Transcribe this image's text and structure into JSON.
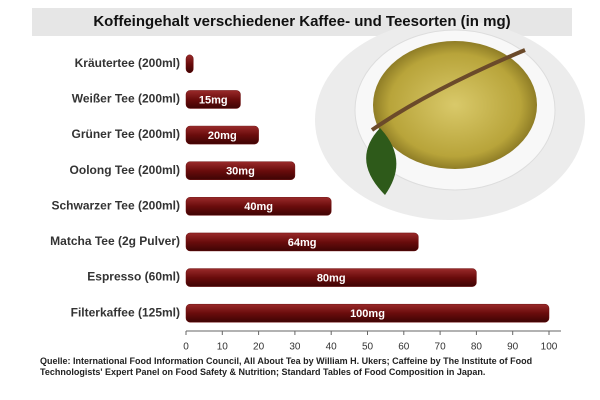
{
  "chart_data": {
    "type": "bar",
    "orientation": "horizontal",
    "title": "Koffeingehalt verschiedener Kaffee- und Teesorten (in mg)",
    "categories": [
      "Kräutertee (200ml)",
      "Weißer Tee (200ml)",
      "Grüner Tee (200ml)",
      "Oolong Tee (200ml)",
      "Schwarzer Tee (200ml)",
      "Matcha Tee (2g Pulver)",
      "Espresso (60ml)",
      "Filterkaffee (125ml)"
    ],
    "values": [
      2,
      15,
      20,
      30,
      40,
      64,
      80,
      100
    ],
    "value_labels": [
      null,
      "15mg",
      "20mg",
      "30mg",
      "40mg",
      "64mg",
      "80mg",
      "100mg"
    ],
    "color": "#6a0c0c",
    "xlim": [
      0,
      100
    ],
    "xticks": [
      0,
      10,
      20,
      30,
      40,
      50,
      60,
      70,
      80,
      90,
      100
    ],
    "grid": false,
    "source": "Quelle: International Food Information Council, All About Tea by William H. Ukers; Caffeine by The Institute of Food Technologists' Expert Panel on Food Safety & Nutrition; Standard Tables of Food Composition in Japan."
  }
}
